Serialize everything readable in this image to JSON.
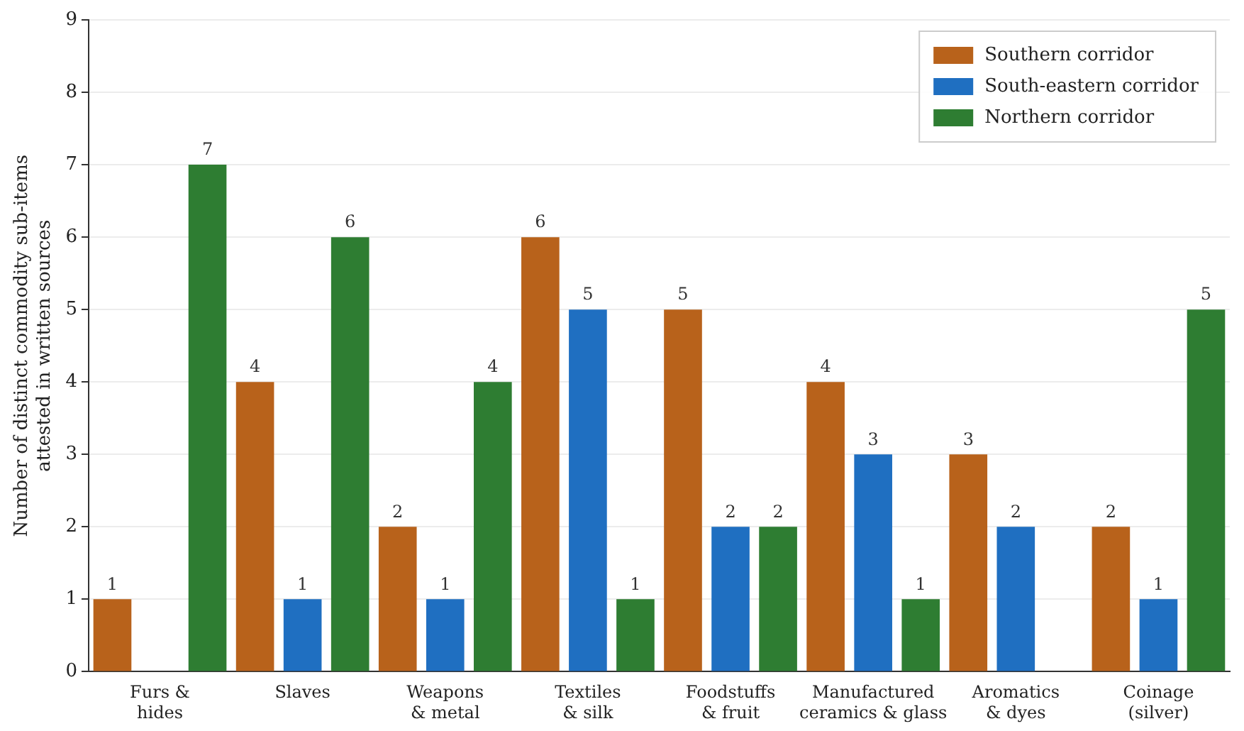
{
  "chart_data": {
    "type": "bar",
    "ylabel": "Number of distinct commodity sub-items\nattested in written sources",
    "categories": [
      "Furs &\nhides",
      "Slaves",
      "Weapons\n& metal",
      "Textiles\n& silk",
      "Foodstuffs\n& fruit",
      "Manufactured\nceramics & glass",
      "Aromatics\n& dyes",
      "Coinage\n(silver)"
    ],
    "series": [
      {
        "name": "Southern corridor",
        "color": "#b8621b",
        "values": [
          1,
          4,
          2,
          6,
          5,
          4,
          3,
          2
        ],
        "value_labels": [
          "1",
          "4",
          "2",
          "6",
          "5",
          "4",
          "3",
          "2"
        ]
      },
      {
        "name": "South-eastern corridor",
        "color": "#1f6fc1",
        "values": [
          0,
          1,
          1,
          5,
          2,
          3,
          2,
          1
        ],
        "value_labels": [
          null,
          "1",
          "1",
          "5",
          "2",
          "3",
          "2",
          "1"
        ]
      },
      {
        "name": "Northern corridor",
        "color": "#2e7d32",
        "values": [
          7,
          6,
          4,
          1,
          2,
          1,
          0,
          5
        ],
        "value_labels": [
          "7",
          "6",
          "4",
          "1",
          "2",
          "1",
          null,
          "5"
        ]
      }
    ],
    "ylim": [
      0,
      9
    ],
    "yticks": [
      0,
      1,
      2,
      3,
      4,
      5,
      6,
      7,
      8,
      9
    ],
    "grid": "y",
    "legend": "top right"
  }
}
